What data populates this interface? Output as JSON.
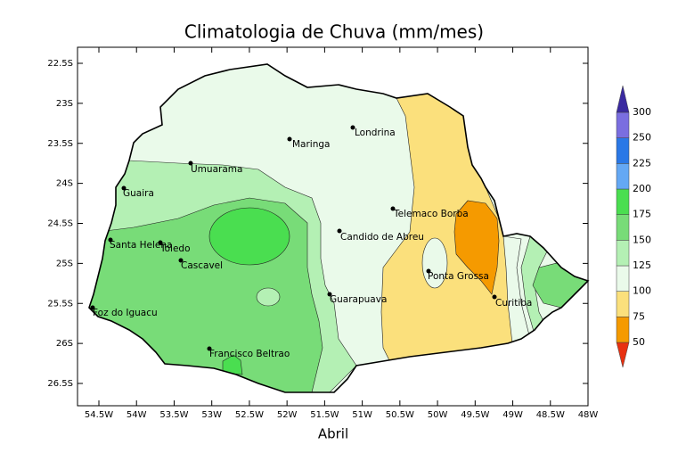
{
  "title": "Climatologia de Chuva (mm/mes)",
  "xlabel": "Abril",
  "axes": {
    "lon_ticks": [
      "54.5W",
      "54W",
      "53.5W",
      "53W",
      "52.5W",
      "52W",
      "51.5W",
      "51W",
      "50.5W",
      "50W",
      "49.5W",
      "49W",
      "48.5W",
      "48W"
    ],
    "lat_ticks": [
      "22.5S",
      "23S",
      "23.5S",
      "24S",
      "24.5S",
      "25S",
      "25.5S",
      "26S",
      "26.5S"
    ]
  },
  "cities": [
    "Londrina",
    "Maringa",
    "Umuarama",
    "Guaira",
    "Telemaco Borba",
    "Candido de Abreu",
    "Santa Helena",
    "Toledo",
    "Cascavel",
    "Ponta Grossa",
    "Guarapuava",
    "Curitiba",
    "Foz do Iguacu",
    "Francisco Beltrao"
  ],
  "colorbar": {
    "levels": [
      50,
      75,
      100,
      125,
      150,
      175,
      200,
      225,
      250,
      300
    ],
    "colors": [
      "#e83010",
      "#f59a00",
      "#fbe07c",
      "#eafaea",
      "#b4f0b4",
      "#78dc78",
      "#4ade50",
      "#64a8f4",
      "#2a78e6",
      "#7a6ee0",
      "#3a2aa0"
    ]
  }
}
